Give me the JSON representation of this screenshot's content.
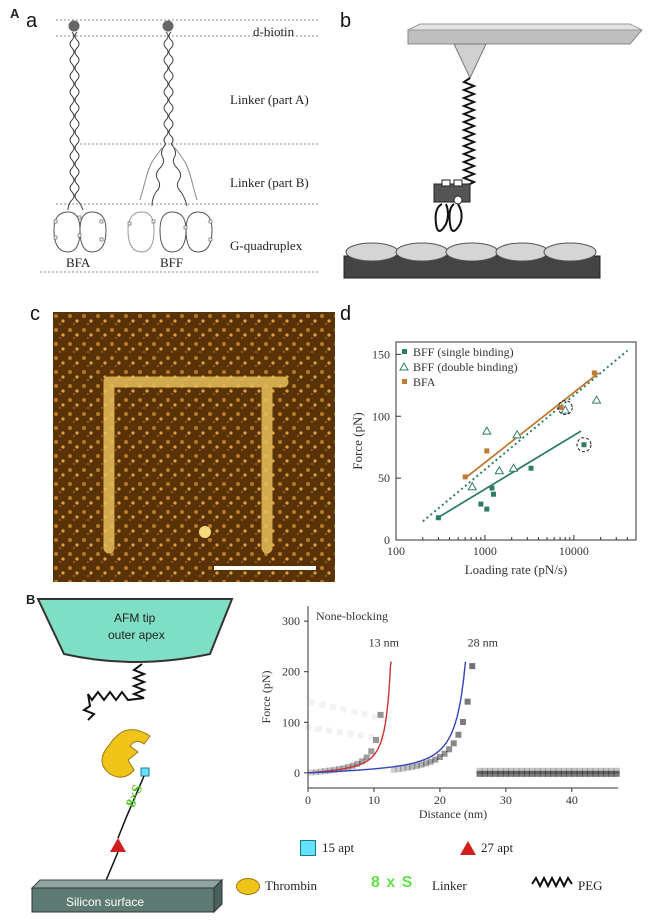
{
  "section_labels": {
    "A": "A",
    "B": "B"
  },
  "panel_labels": {
    "a": "a",
    "b": "b",
    "c": "c",
    "d": "d"
  },
  "panel_a": {
    "labels": {
      "d_biotin": "d-biotin",
      "linker_a": "Linker (part A)",
      "linker_b": "Linker (part B)",
      "gquad": "G-quadruplex",
      "bfa": "BFA",
      "bff": "BFF"
    }
  },
  "panel_d": {
    "chart_data": {
      "type": "scatter",
      "xlabel": "Loading rate (pN/s)",
      "ylabel": "Force (pN)",
      "x_scale": "log",
      "xlim": [
        100,
        50000
      ],
      "ylim": [
        0,
        160
      ],
      "xticks": [
        100,
        1000,
        10000
      ],
      "xtick_labels": [
        "100",
        "1000",
        "10000"
      ],
      "yticks": [
        0,
        50,
        100,
        150
      ],
      "ytick_labels": [
        "0",
        "50",
        "100",
        "150"
      ],
      "legend_position": "top-left",
      "series": [
        {
          "name": "BFF (single binding)",
          "marker": "square",
          "color": "#2e7d6b",
          "x": [
            300,
            900,
            1050,
            1200,
            1250,
            3300,
            13000
          ],
          "y": [
            18,
            29,
            25,
            42,
            37,
            58,
            77
          ],
          "fit": {
            "x": [
              280,
              12000
            ],
            "y": [
              17,
              88
            ]
          }
        },
        {
          "name": "BFF (double binding)",
          "marker": "open-triangle",
          "color": "#2e7d6b",
          "x": [
            720,
            1050,
            1450,
            2100,
            2300,
            8000,
            18000
          ],
          "y": [
            43,
            88,
            56,
            58,
            85,
            105,
            113
          ],
          "fit": {
            "x": [
              200,
              40000
            ],
            "y": [
              15,
              153
            ],
            "style": "dotted"
          }
        },
        {
          "name": "BFA",
          "marker": "square",
          "color": "#c07a33",
          "x": [
            600,
            1050,
            7200,
            17000
          ],
          "y": [
            51,
            72,
            107,
            135
          ],
          "fit": {
            "x": [
              600,
              19000
            ],
            "y": [
              50,
              135
            ]
          }
        }
      ],
      "circled_points": [
        {
          "x": 8000,
          "y": 107
        },
        {
          "x": 13000,
          "y": 77
        }
      ]
    }
  },
  "panel_B_left": {
    "tip_label_line1": "AFM tip",
    "tip_label_line2": "outer apex",
    "linker_text": "8×S",
    "surface_label": "Silicon surface"
  },
  "panel_B_chart": {
    "chart_data": {
      "type": "heatmap",
      "title": "None-blocking",
      "xlabel": "Distance (nm)",
      "ylabel": "Force (pN)",
      "xlim": [
        0,
        47
      ],
      "ylim": [
        -30,
        330
      ],
      "xticks": [
        0,
        10,
        20,
        30,
        40
      ],
      "xtick_labels": [
        "0",
        "10",
        "20",
        "30",
        "40"
      ],
      "yticks": [
        0,
        100,
        200,
        300
      ],
      "ytick_labels": [
        "0",
        "100",
        "200",
        "300"
      ],
      "annotations": [
        {
          "text": "13 nm",
          "x": 11.5,
          "y": 250
        },
        {
          "text": "28 nm",
          "x": 26.5,
          "y": 250
        }
      ],
      "series": [
        {
          "name": "",
          "color": "#cc3333",
          "contour_length_nm": 13
        },
        {
          "name": "",
          "color": "#3344bb",
          "contour_length_nm": 28
        }
      ]
    }
  },
  "legend_B": {
    "apt15": "15 apt",
    "apt27": "27 apt",
    "thrombin": "Thrombin",
    "linker_glyph": "8 x S",
    "linker": "Linker",
    "peg": "PEG"
  }
}
